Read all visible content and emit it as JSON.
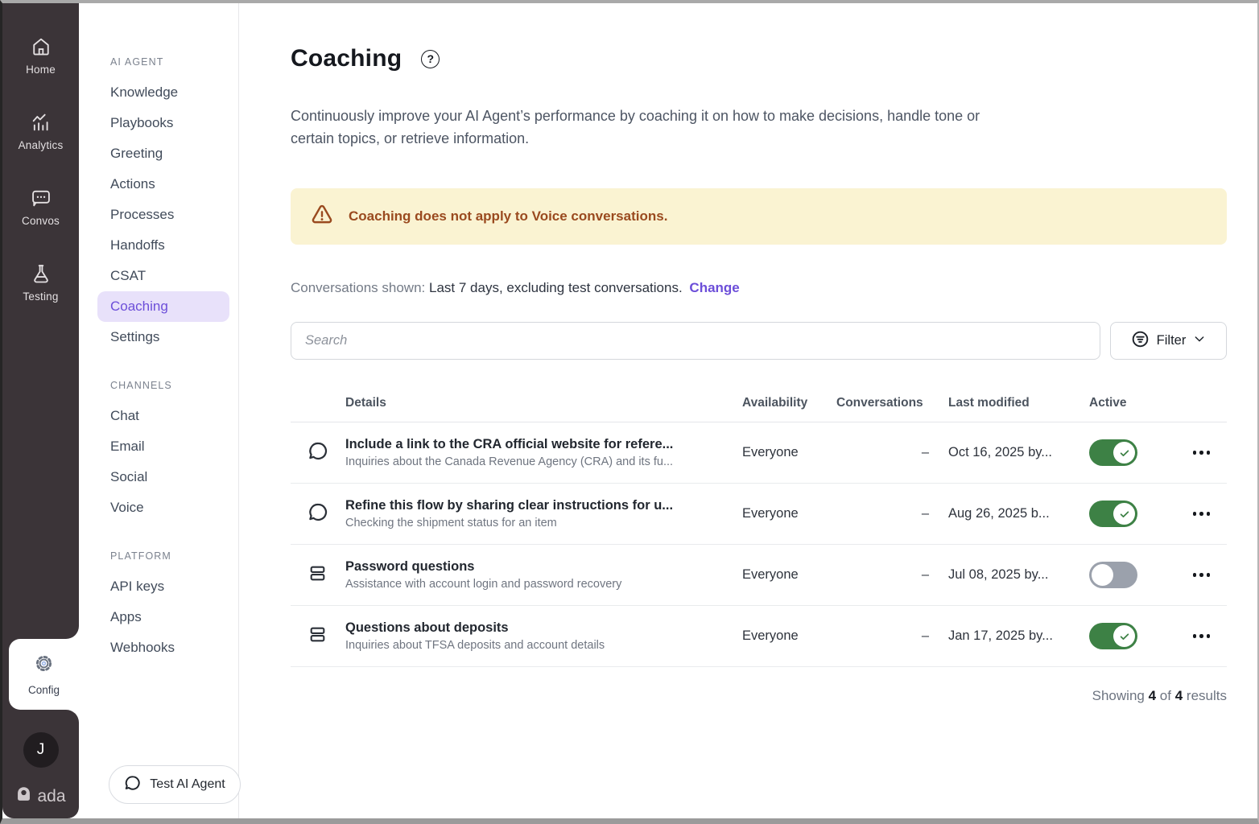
{
  "colors": {
    "rail_bg": "#3b3438",
    "accent": "#6c4ed9",
    "accent_soft": "#e8e1fa",
    "banner_bg": "#faf3d2",
    "banner_fg": "#9a4a1f",
    "toggle_on": "#3d8145",
    "toggle_off": "#9ba1ac"
  },
  "rail": {
    "items": [
      {
        "label": "Home",
        "icon": "home-icon"
      },
      {
        "label": "Analytics",
        "icon": "analytics-icon"
      },
      {
        "label": "Convos",
        "icon": "convos-icon"
      },
      {
        "label": "Testing",
        "icon": "testing-icon"
      }
    ],
    "config": {
      "label": "Config",
      "icon": "gear-icon"
    },
    "avatar_initial": "J",
    "logo_text": "ada"
  },
  "sidebar": {
    "sections": [
      {
        "label": "AI AGENT",
        "items": [
          "Knowledge",
          "Playbooks",
          "Greeting",
          "Actions",
          "Processes",
          "Handoffs",
          "CSAT",
          "Coaching",
          "Settings"
        ],
        "active": "Coaching"
      },
      {
        "label": "CHANNELS",
        "items": [
          "Chat",
          "Email",
          "Social",
          "Voice"
        ],
        "active": null
      },
      {
        "label": "PLATFORM",
        "items": [
          "API keys",
          "Apps",
          "Webhooks"
        ],
        "active": null
      }
    ],
    "test_button_label": "Test AI Agent"
  },
  "main": {
    "title": "Coaching",
    "help_icon": "?",
    "description": "Continuously improve your AI Agent’s performance by coaching it on how to make decisions, handle tone or certain topics, or retrieve information.",
    "banner": {
      "icon": "warning-icon",
      "text": "Coaching does not apply to Voice conversations."
    },
    "filter_line": {
      "label": "Conversations shown:",
      "value": "Last 7 days, excluding test conversations.",
      "action": "Change"
    },
    "search": {
      "placeholder": "Search"
    },
    "filter_button": {
      "label": "Filter",
      "icon": "filter-icon",
      "chevron": "chevron-down-icon"
    },
    "table": {
      "columns": [
        "Details",
        "Availability",
        "Conversations",
        "Last modified",
        "Active"
      ],
      "rows": [
        {
          "icon": "chat-bubble-icon",
          "title": "Include a link to the CRA official website for refere...",
          "subtitle": "Inquiries about the Canada Revenue Agency (CRA) and its fu...",
          "availability": "Everyone",
          "conversations": "–",
          "last_modified": "Oct 16, 2025 by...",
          "active": true
        },
        {
          "icon": "chat-bubble-icon",
          "title": "Refine this flow by sharing clear instructions for u...",
          "subtitle": "Checking the shipment status for an item",
          "availability": "Everyone",
          "conversations": "–",
          "last_modified": "Aug 26, 2025 b...",
          "active": true
        },
        {
          "icon": "stack-icon",
          "title": "Password questions",
          "subtitle": "Assistance with account login and password recovery",
          "availability": "Everyone",
          "conversations": "–",
          "last_modified": "Jul 08, 2025 by...",
          "active": false
        },
        {
          "icon": "stack-icon",
          "title": "Questions about deposits",
          "subtitle": "Inquiries about TFSA deposits and account details",
          "availability": "Everyone",
          "conversations": "–",
          "last_modified": "Jan 17, 2025 by...",
          "active": true
        }
      ]
    },
    "footer": {
      "prefix": "Showing",
      "count": "4",
      "middle": "of",
      "total": "4",
      "suffix": "results"
    }
  }
}
